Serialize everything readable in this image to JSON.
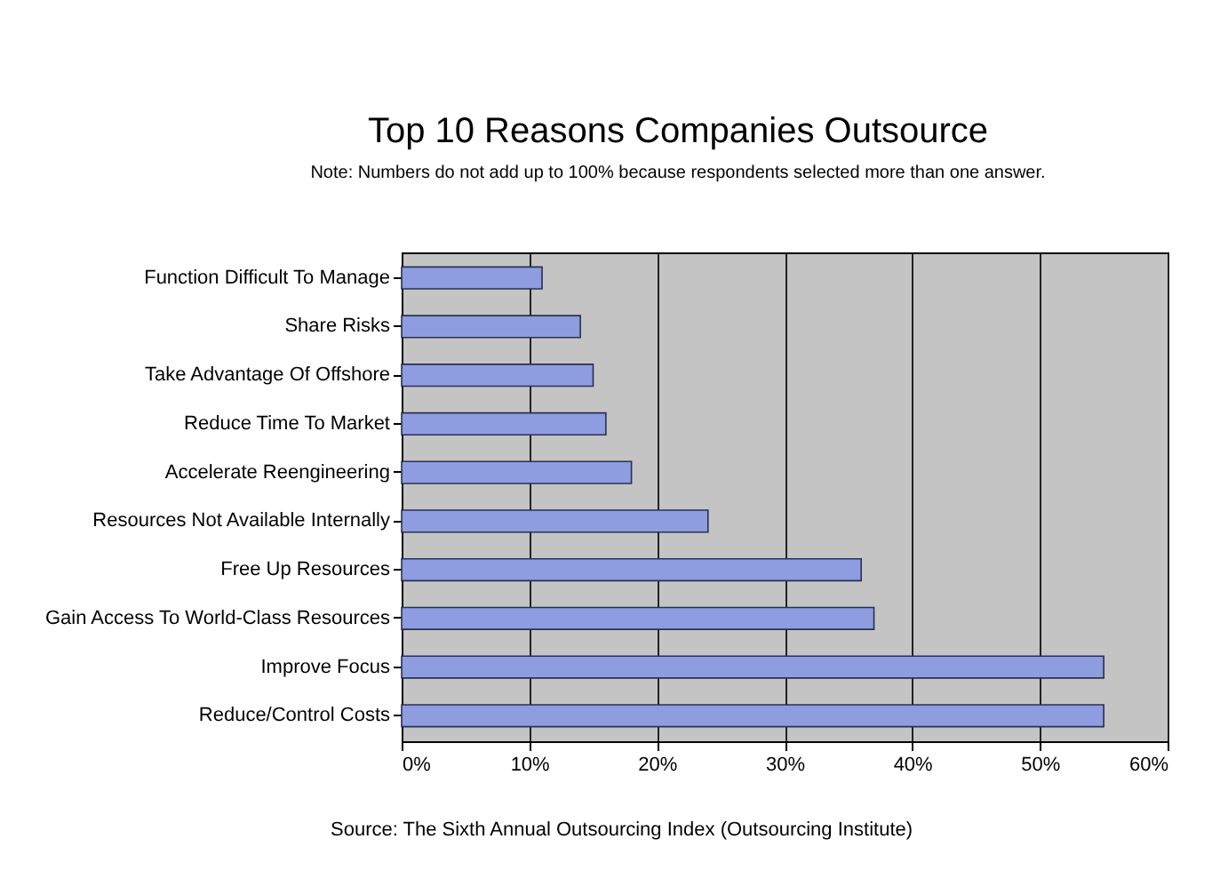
{
  "chart_data": {
    "type": "bar",
    "orientation": "horizontal",
    "title": "Top 10 Reasons Companies Outsource",
    "subtitle": "Note: Numbers do not add up to 100% because respondents selected more than one answer.",
    "categories": [
      "Function Difficult To Manage",
      "Share Risks",
      "Take Advantage Of Offshore",
      "Reduce Time To Market",
      "Accelerate Reengineering",
      "Resources Not Available Internally",
      "Free Up Resources",
      "Gain Access To World-Class Resources",
      "Improve Focus",
      "Reduce/Control Costs"
    ],
    "values": [
      11,
      14,
      15,
      16,
      18,
      24,
      36,
      37,
      55,
      55
    ],
    "color": "#8e9ce0",
    "xlim": [
      0,
      60
    ],
    "xticks": [
      {
        "value": 0,
        "label": "0%"
      },
      {
        "value": 10,
        "label": "10%"
      },
      {
        "value": 20,
        "label": "20%"
      },
      {
        "value": 30,
        "label": "30%"
      },
      {
        "value": 40,
        "label": "40%"
      },
      {
        "value": 50,
        "label": "50%"
      },
      {
        "value": 60,
        "label": "60%"
      }
    ],
    "grid": "x",
    "annotations": [
      "Source: The Sixth Annual Outsourcing Index (Outsourcing Institute)"
    ]
  }
}
